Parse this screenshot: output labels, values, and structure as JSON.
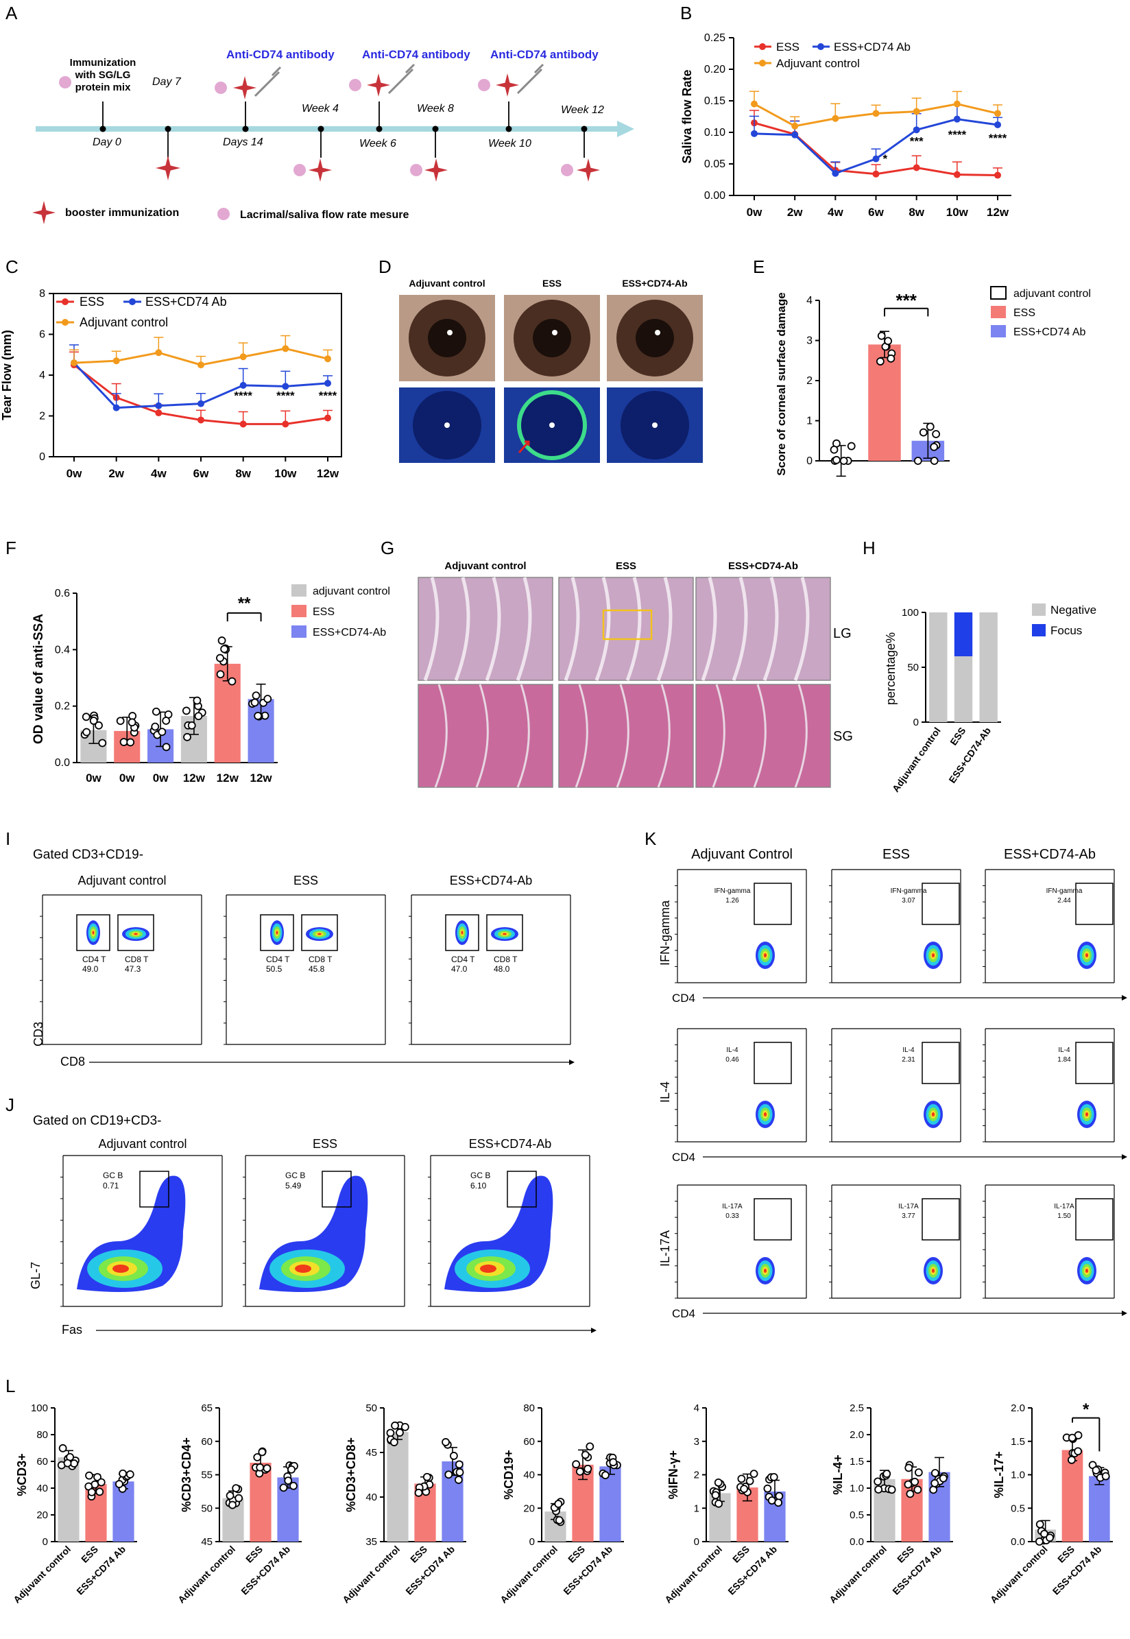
{
  "panel_letters": [
    "A",
    "B",
    "C",
    "D",
    "E",
    "F",
    "G",
    "H",
    "I",
    "J",
    "K",
    "L"
  ],
  "colors": {
    "ess": "#e8312a",
    "cd74": "#2346d8",
    "adjuvant": "#f29a1c",
    "ess_bar": "#f47a76",
    "cd74_bar": "#7b84f0",
    "ctrl_bar": "#c8c8c8",
    "timeline": "#a6d8e0",
    "star": "#c8333a",
    "dot": "#e2a8d2",
    "ab_text": "#2a2ae0",
    "neg": "#c8c8c8",
    "focus": "#1f3fe8",
    "yellow_box": "#f2c21a"
  },
  "panelA": {
    "steps": [
      {
        "top": "Immunization with SG/LG protein mix",
        "bottom": "Day 0"
      },
      {
        "top": "Day 7",
        "bottom": ""
      },
      {
        "top": "Anti-CD74 antibody",
        "bottom": "Days 14"
      },
      {
        "top": "Week 4",
        "bottom": ""
      },
      {
        "top": "Anti-CD74 antibody",
        "bottom": "Week 6"
      },
      {
        "top": "Week 8",
        "bottom": ""
      },
      {
        "top": "Anti-CD74 antibody",
        "bottom": "Week 10"
      },
      {
        "top": "Week 12",
        "bottom": ""
      }
    ],
    "immun_lines": [
      "Immunization",
      "with SG/LG",
      "protein mix"
    ],
    "legend_star": "booster immunization",
    "legend_dot": "Lacrimal/saliva flow rate mesure"
  },
  "chart_data": [
    {
      "panel": "B",
      "type": "line",
      "title": "",
      "xlabel": "",
      "ylabel": "Saliva flow Rate",
      "categories": [
        "0w",
        "2w",
        "4w",
        "6w",
        "8w",
        "10w",
        "12w"
      ],
      "ylim": [
        0,
        0.25
      ],
      "yticks": [
        "0.00",
        "0.05",
        "0.10",
        "0.15",
        "0.20",
        "0.25"
      ],
      "series": [
        {
          "name": "ESS",
          "values": [
            0.115,
            0.097,
            0.04,
            0.034,
            0.044,
            0.033,
            0.032
          ]
        },
        {
          "name": "ESS+CD74 Ab",
          "values": [
            0.098,
            0.096,
            0.035,
            0.058,
            0.104,
            0.121,
            0.112
          ]
        },
        {
          "name": "Adjuvant control",
          "values": [
            0.145,
            0.11,
            0.122,
            0.13,
            0.133,
            0.145,
            0.13
          ]
        }
      ],
      "annotations": [
        "*",
        "***",
        "****",
        "****"
      ]
    },
    {
      "panel": "C",
      "type": "line",
      "xlabel": "",
      "ylabel": "Tear Flow (mm)",
      "categories": [
        "0w",
        "2w",
        "4w",
        "6w",
        "8w",
        "10w",
        "12w"
      ],
      "ylim": [
        0,
        8
      ],
      "yticks": [
        "0",
        "2",
        "4",
        "6",
        "8"
      ],
      "series": [
        {
          "name": "ESS",
          "values": [
            4.5,
            2.9,
            2.15,
            1.8,
            1.6,
            1.6,
            1.9
          ]
        },
        {
          "name": "ESS+CD74 Ab",
          "values": [
            4.6,
            2.4,
            2.5,
            2.6,
            3.5,
            3.45,
            3.6
          ]
        },
        {
          "name": "Adjuvant control",
          "values": [
            4.6,
            4.7,
            5.1,
            4.5,
            4.9,
            5.3,
            4.8
          ]
        }
      ],
      "annotations": [
        "****",
        "****",
        "****"
      ]
    },
    {
      "panel": "E",
      "type": "bar",
      "ylabel": "Score of corneal surface damage",
      "categories": [
        "adjuvant control",
        "ESS",
        "ESS+CD74 Ab"
      ],
      "values": [
        0,
        2.9,
        0.5
      ],
      "ylim": [
        0,
        4
      ],
      "yticks": [
        "0",
        "1",
        "2",
        "3",
        "4"
      ],
      "annotations": [
        "***"
      ]
    },
    {
      "panel": "F",
      "type": "bar",
      "ylabel": "OD value of anti-SSA",
      "categories": [
        "0w",
        "0w",
        "0w",
        "12w",
        "12w",
        "12w"
      ],
      "values": [
        0.115,
        0.112,
        0.118,
        0.165,
        0.35,
        0.225
      ],
      "ylim": [
        0,
        0.6
      ],
      "yticks": [
        "0.0",
        "0.2",
        "0.4",
        "0.6"
      ],
      "legend": [
        "adjuvant control",
        "ESS",
        "ESS+CD74-Ab"
      ],
      "annotations": [
        "**"
      ]
    },
    {
      "panel": "H",
      "type": "bar",
      "ylabel": "percentage%",
      "categories": [
        "Adjuvant control",
        "ESS",
        "ESS+CD74-Ab"
      ],
      "series": [
        {
          "name": "Negative",
          "values": [
            100,
            60,
            100
          ]
        },
        {
          "name": "Focus",
          "values": [
            0,
            40,
            0
          ]
        }
      ],
      "ylim": [
        0,
        100
      ],
      "yticks": [
        "0",
        "50",
        "100"
      ]
    },
    {
      "panel": "L1",
      "type": "bar",
      "ylabel": "%CD3+",
      "categories": [
        "Adjuvant control",
        "ESS",
        "ESS+CD74 Ab"
      ],
      "values": [
        63,
        43,
        45
      ],
      "ylim": [
        0,
        100
      ],
      "yticks": [
        "0",
        "20",
        "40",
        "60",
        "80",
        "100"
      ]
    },
    {
      "panel": "L2",
      "type": "bar",
      "ylabel": "%CD3+CD4+",
      "categories": [
        "Adjuvant control",
        "ESS",
        "ESS+CD74 Ab"
      ],
      "values": [
        51.5,
        56.8,
        54.6
      ],
      "ylim": [
        45,
        65
      ],
      "yticks": [
        "45",
        "50",
        "55",
        "60",
        "65"
      ]
    },
    {
      "panel": "L3",
      "type": "bar",
      "ylabel": "%CD3+CD8+",
      "categories": [
        "Adjuvant control",
        "ESS",
        "ESS+CD74 Ab"
      ],
      "values": [
        47.3,
        41.5,
        44
      ],
      "ylim": [
        35,
        50
      ],
      "yticks": [
        "35",
        "40",
        "45",
        "50"
      ]
    },
    {
      "panel": "L4",
      "type": "bar",
      "ylabel": "%CD19+",
      "categories": [
        "Adjuvant control",
        "ESS",
        "ESS+CD74 Ab"
      ],
      "values": [
        18,
        46,
        45
      ],
      "ylim": [
        0,
        80
      ],
      "yticks": [
        "0",
        "20",
        "40",
        "60",
        "80"
      ]
    },
    {
      "panel": "L5",
      "type": "bar",
      "ylabel": "%IFN-γ+",
      "categories": [
        "Adjuvant control",
        "ESS",
        "ESS+CD74 Ab"
      ],
      "values": [
        1.45,
        1.62,
        1.5
      ],
      "ylim": [
        0,
        4
      ],
      "yticks": [
        "0",
        "1",
        "2",
        "3",
        "4"
      ]
    },
    {
      "panel": "L6",
      "type": "bar",
      "ylabel": "%IL-4+",
      "categories": [
        "Adjuvant control",
        "ESS",
        "ESS+CD74 Ab"
      ],
      "values": [
        1.17,
        1.17,
        1.3
      ],
      "ylim": [
        0,
        2.5
      ],
      "yticks": [
        "0.0",
        "0.5",
        "1.0",
        "1.5",
        "2.0",
        "2.5"
      ]
    },
    {
      "panel": "L7",
      "type": "bar",
      "ylabel": "%IL-17+",
      "categories": [
        "Adjuvant control",
        "ESS",
        "ESS+CD74 Ab"
      ],
      "values": [
        0.18,
        1.37,
        0.98
      ],
      "ylim": [
        0,
        2
      ],
      "yticks": [
        "0.0",
        "0.5",
        "1.0",
        "1.5",
        "2.0"
      ],
      "annotations": [
        "*"
      ]
    }
  ],
  "panelB": {
    "legend": [
      "ESS",
      "ESS+CD74 Ab",
      "Adjuvant control"
    ]
  },
  "panelC": {
    "legend": [
      "ESS",
      "ESS+CD74 Ab",
      "Adjuvant control"
    ]
  },
  "panelD": {
    "labels": [
      "Adjuvant control",
      "ESS",
      "ESS+CD74-Ab"
    ]
  },
  "panelE": {
    "legend": [
      "adjuvant control",
      "ESS",
      "ESS+CD74 Ab"
    ]
  },
  "panelG": {
    "labels": [
      "Adjuvant control",
      "ESS",
      "ESS+CD74-Ab"
    ],
    "rows": [
      "LG",
      "SG"
    ]
  },
  "panelH": {
    "legend": [
      "Negative",
      "Focus"
    ]
  },
  "panelI": {
    "gate": "Gated CD3+CD19-",
    "groups": [
      {
        "name": "Adjuvant control",
        "cd4": "49.0",
        "cd8": "47.3"
      },
      {
        "name": "ESS",
        "cd4": "50.5",
        "cd8": "45.8"
      },
      {
        "name": "ESS+CD74-Ab",
        "cd4": "47.0",
        "cd8": "48.0"
      }
    ],
    "cd4_label": "CD4 T",
    "cd8_label": "CD8 T",
    "xaxis": "CD8",
    "yaxis": "CD3"
  },
  "panelJ": {
    "gate": "Gated on CD19+CD3-",
    "groups": [
      {
        "name": "Adjuvant control",
        "value": "0.71"
      },
      {
        "name": "ESS",
        "value": "5.49"
      },
      {
        "name": "ESS+CD74-Ab",
        "value": "6.10"
      }
    ],
    "gate_label": "GC B",
    "xaxis": "Fas",
    "yaxis": "GL-7"
  },
  "panelK": {
    "groups": [
      "Adjuvant Control",
      "ESS",
      "ESS+CD74-Ab"
    ],
    "rows": [
      {
        "marker": "IFN-gamma",
        "values": [
          "1.26",
          "3.07",
          "2.44"
        ]
      },
      {
        "marker": "IL-4",
        "values": [
          "0.46",
          "2.31",
          "1.84"
        ]
      },
      {
        "marker": "IL-17A",
        "values": [
          "0.33",
          "3.77",
          "1.50"
        ]
      }
    ],
    "xaxis": "CD4"
  }
}
